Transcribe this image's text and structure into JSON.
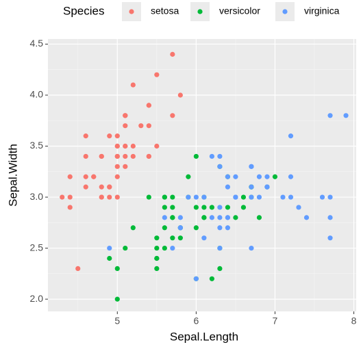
{
  "chart_data": {
    "type": "scatter",
    "x_label": "Sepal.Length",
    "y_label": "Sepal.Width",
    "legend_title": "Species",
    "legend_position": "top",
    "grid": true,
    "xlim": [
      4.12,
      8.03
    ],
    "xticks": [
      5,
      6,
      7,
      8
    ],
    "ylim": [
      1.88,
      4.55
    ],
    "yticks": [
      {
        "value": 2,
        "label": "2.0"
      },
      2.5,
      {
        "value": 3,
        "label": "3.0"
      },
      3.5,
      {
        "value": 4,
        "label": "4.0"
      },
      4.5
    ],
    "series": [
      {
        "name": "setosa",
        "color": "#F8766D",
        "x": [
          5.1,
          4.9,
          4.7,
          4.6,
          5.0,
          5.4,
          4.6,
          5.0,
          4.4,
          4.9,
          5.4,
          4.8,
          4.8,
          4.3,
          5.8,
          5.7,
          5.4,
          5.1,
          5.7,
          5.1,
          5.4,
          5.1,
          4.6,
          5.1,
          4.8,
          5.0,
          5.0,
          5.2,
          5.2,
          4.7,
          4.8,
          5.4,
          5.2,
          5.5,
          4.9,
          5.0,
          5.5,
          4.9,
          4.4,
          5.1,
          5.0,
          4.5,
          4.4,
          5.0,
          5.1,
          4.8,
          5.1,
          4.6,
          5.3,
          5.0
        ],
        "values": [
          3.5,
          3.0,
          3.2,
          3.1,
          3.6,
          3.9,
          3.4,
          3.4,
          2.9,
          3.1,
          3.7,
          3.4,
          3.0,
          3.0,
          4.0,
          4.4,
          3.9,
          3.5,
          3.8,
          3.8,
          3.4,
          3.7,
          3.6,
          3.3,
          3.4,
          3.0,
          3.4,
          3.5,
          3.4,
          3.2,
          3.1,
          3.4,
          4.1,
          4.2,
          3.1,
          3.2,
          3.5,
          3.6,
          3.0,
          3.4,
          3.5,
          2.3,
          3.2,
          3.5,
          3.8,
          3.0,
          3.8,
          3.2,
          3.7,
          3.3
        ]
      },
      {
        "name": "versicolor",
        "color": "#00BA38",
        "x": [
          7.0,
          6.4,
          6.9,
          5.5,
          6.5,
          5.7,
          6.3,
          4.9,
          6.6,
          5.2,
          5.0,
          5.9,
          6.0,
          6.1,
          5.6,
          6.7,
          5.6,
          5.8,
          6.2,
          5.6,
          5.9,
          6.1,
          6.3,
          6.1,
          6.4,
          6.6,
          6.8,
          6.7,
          6.0,
          5.7,
          5.5,
          5.5,
          5.8,
          6.0,
          5.4,
          6.0,
          6.7,
          6.3,
          5.6,
          5.5,
          5.5,
          6.1,
          5.8,
          5.0,
          5.6,
          5.7,
          5.7,
          6.2,
          5.1,
          5.7
        ],
        "values": [
          3.2,
          3.2,
          3.1,
          2.3,
          2.8,
          2.8,
          3.3,
          2.4,
          2.9,
          2.7,
          2.0,
          3.0,
          2.2,
          2.9,
          2.9,
          3.1,
          3.0,
          2.7,
          2.2,
          2.5,
          3.2,
          2.8,
          2.5,
          2.8,
          2.9,
          3.0,
          2.8,
          3.0,
          2.9,
          2.6,
          2.4,
          2.4,
          2.7,
          2.7,
          3.0,
          3.4,
          3.1,
          2.3,
          3.0,
          2.5,
          2.6,
          3.0,
          2.6,
          2.3,
          2.7,
          3.0,
          2.9,
          2.9,
          2.5,
          2.8
        ]
      },
      {
        "name": "virginica",
        "color": "#619CFF",
        "x": [
          6.3,
          5.8,
          7.1,
          6.3,
          6.5,
          7.6,
          4.9,
          7.3,
          6.7,
          7.2,
          6.5,
          6.4,
          6.8,
          5.7,
          5.8,
          6.4,
          6.5,
          7.7,
          7.7,
          6.0,
          6.9,
          5.6,
          7.7,
          6.3,
          6.7,
          7.2,
          6.2,
          6.1,
          6.4,
          7.2,
          7.4,
          7.9,
          6.4,
          6.3,
          6.1,
          7.7,
          6.3,
          6.4,
          6.0,
          6.9,
          6.7,
          6.9,
          5.8,
          6.8,
          6.7,
          6.7,
          6.3,
          6.5,
          6.2,
          5.9
        ],
        "values": [
          3.3,
          2.7,
          3.0,
          2.9,
          3.0,
          3.0,
          2.5,
          2.9,
          2.5,
          3.6,
          3.2,
          2.7,
          3.0,
          2.5,
          2.8,
          3.2,
          3.0,
          3.8,
          2.6,
          2.2,
          3.2,
          2.8,
          2.8,
          2.7,
          3.3,
          3.2,
          2.8,
          3.0,
          2.8,
          3.0,
          2.8,
          3.8,
          2.8,
          2.8,
          2.6,
          3.0,
          3.4,
          3.1,
          3.0,
          3.1,
          3.1,
          3.1,
          2.7,
          3.2,
          3.3,
          3.0,
          2.5,
          3.0,
          3.4,
          3.0
        ]
      }
    ]
  }
}
